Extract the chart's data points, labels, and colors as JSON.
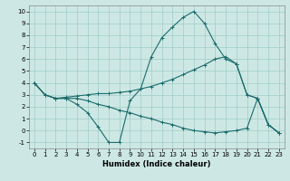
{
  "xlabel": "Humidex (Indice chaleur)",
  "background_color": "#cde8e4",
  "grid_color": "#a0ccc8",
  "line_color": "#1a6b6b",
  "xlim": [
    -0.5,
    23.5
  ],
  "ylim": [
    -1.5,
    10.5
  ],
  "xticks": [
    0,
    1,
    2,
    3,
    4,
    5,
    6,
    7,
    8,
    9,
    10,
    11,
    12,
    13,
    14,
    15,
    16,
    17,
    18,
    19,
    20,
    21,
    22,
    23
  ],
  "yticks": [
    -1,
    0,
    1,
    2,
    3,
    4,
    5,
    6,
    7,
    8,
    9,
    10
  ],
  "line1_x": [
    0,
    1,
    2,
    3,
    4,
    5,
    6,
    7,
    8,
    9,
    10,
    11,
    12,
    13,
    14,
    15,
    16,
    17,
    18,
    19,
    20,
    21,
    22,
    23
  ],
  "line1_y": [
    4,
    3,
    2.7,
    2.7,
    2.2,
    1.5,
    0.3,
    -1.0,
    -1.0,
    2.5,
    3.5,
    6.2,
    7.8,
    8.7,
    9.5,
    10.0,
    9.0,
    7.3,
    6.0,
    5.6,
    3.0,
    2.7,
    0.5,
    -0.2
  ],
  "line2_x": [
    0,
    1,
    2,
    3,
    4,
    5,
    6,
    7,
    8,
    9,
    10,
    11,
    12,
    13,
    14,
    15,
    16,
    17,
    18,
    19,
    20,
    21,
    22,
    23
  ],
  "line2_y": [
    4.0,
    3.0,
    2.7,
    2.8,
    2.9,
    3.0,
    3.1,
    3.1,
    3.2,
    3.3,
    3.5,
    3.7,
    4.0,
    4.3,
    4.7,
    5.1,
    5.5,
    6.0,
    6.2,
    5.6,
    3.0,
    2.7,
    0.5,
    -0.2
  ],
  "line3_x": [
    0,
    1,
    2,
    3,
    4,
    5,
    6,
    7,
    8,
    9,
    10,
    11,
    12,
    13,
    14,
    15,
    16,
    17,
    18,
    19,
    20,
    21,
    22,
    23
  ],
  "line3_y": [
    4.0,
    3.0,
    2.7,
    2.7,
    2.7,
    2.5,
    2.2,
    2.0,
    1.7,
    1.5,
    1.2,
    1.0,
    0.7,
    0.5,
    0.2,
    0.0,
    -0.1,
    -0.2,
    -0.1,
    0.0,
    0.2,
    2.7,
    0.5,
    -0.2
  ]
}
